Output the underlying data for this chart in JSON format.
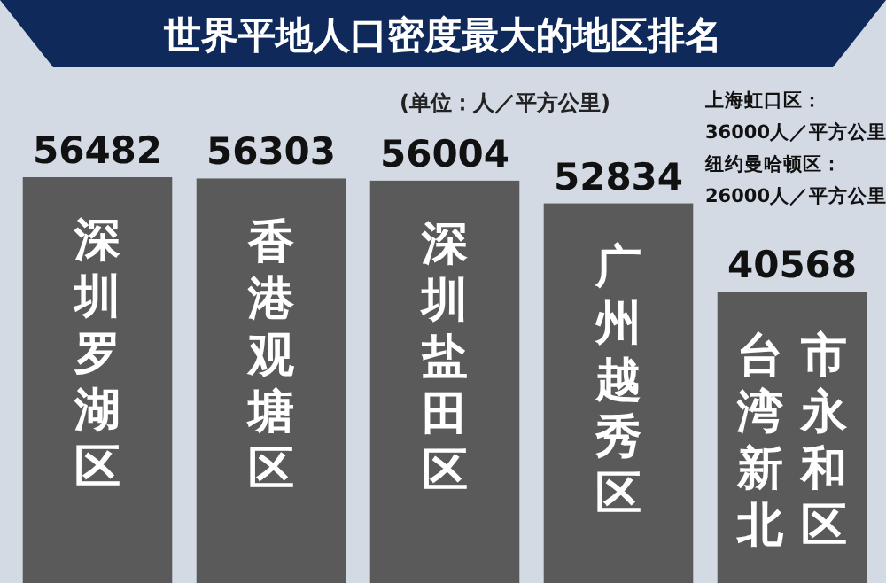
{
  "chart_data": {
    "type": "bar",
    "title": "世界平地人口密度最大的地区排名",
    "subtitle": "(单位：人／平方公里)",
    "annotations": [
      "上海虹口区：",
      "36000人／平方公里",
      "纽约曼哈顿区：",
      "26000人／平方公里"
    ],
    "categories": [
      "深圳罗湖区",
      "香港观塘区",
      "深圳盐田区",
      "广州越秀区",
      "台湾新北市永和区"
    ],
    "values": [
      56482,
      56303,
      56004,
      52834,
      40568
    ],
    "color": "#5a5a5a",
    "data_labels": true
  }
}
